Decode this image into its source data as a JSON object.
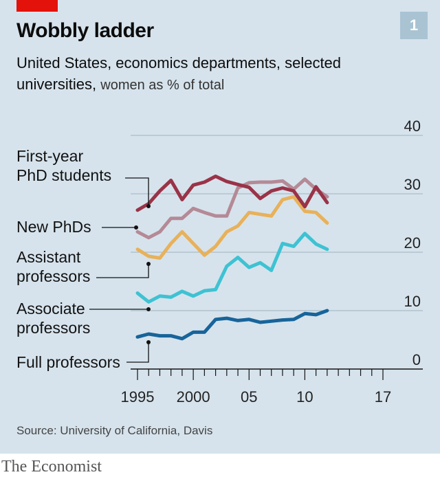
{
  "header": {
    "title": "Wobbly ladder",
    "badge": "1",
    "subtitle_bold": "United States, economics departments, selected universities,",
    "subtitle_light": "women as % of total"
  },
  "footer": {
    "source": "Source: University of California, Davis",
    "brand": "The Economist"
  },
  "colors": {
    "first_year": "#9a3348",
    "new_phds": "#b48a96",
    "assistant": "#e8b15a",
    "associate": "#3ec2d3",
    "full": "#17649a",
    "accent_red": "#e3120b",
    "background": "#d6e3ec"
  },
  "chart_data": {
    "type": "line",
    "x": [
      1995,
      1996,
      1997,
      1998,
      1999,
      2000,
      2001,
      2002,
      2003,
      2004,
      2005,
      2006,
      2007,
      2008,
      2009,
      2010,
      2011,
      2012,
      2013,
      2014,
      2015,
      2016,
      2017
    ],
    "ylim": [
      0,
      40
    ],
    "y_ticks": [
      "0",
      "10",
      "20",
      "30",
      "40"
    ],
    "x_ticks": [
      {
        "value": 1995,
        "label": "1995"
      },
      {
        "value": 2000,
        "label": "2000"
      },
      {
        "value": 2005,
        "label": "05"
      },
      {
        "value": 2010,
        "label": "10"
      },
      {
        "value": 2017,
        "label": "17"
      }
    ],
    "series": [
      {
        "key": "first_year",
        "label_lines": [
          "First-year",
          "PhD students"
        ],
        "values": [
          null,
          null,
          null,
          null,
          null,
          27.2,
          28.3,
          30.5,
          32.3,
          29.0,
          31.5,
          32.0,
          33.0,
          32.1,
          31.6,
          31.1,
          29.2,
          30.5,
          31.0,
          30.5,
          27.8,
          31.2,
          28.5
        ]
      },
      {
        "key": "new_phds",
        "label_lines": [
          "New PhDs"
        ],
        "values": [
          null,
          null,
          null,
          null,
          null,
          23.5,
          22.5,
          23.5,
          25.8,
          25.8,
          27.5,
          26.8,
          26.2,
          26.2,
          31.0,
          31.9,
          32.0,
          32.0,
          32.2,
          30.8,
          32.5,
          30.8,
          29.5
        ]
      },
      {
        "key": "assistant",
        "label_lines": [
          "Assistant",
          "professors"
        ],
        "values": [
          null,
          null,
          null,
          null,
          null,
          20.5,
          19.3,
          19.0,
          21.5,
          23.5,
          21.5,
          19.5,
          21.0,
          23.5,
          24.5,
          26.8,
          26.5,
          26.2,
          29.0,
          29.5,
          27.0,
          26.8,
          25.0
        ]
      },
      {
        "key": "associate",
        "label_lines": [
          "Associate",
          "professors"
        ],
        "values": [
          null,
          null,
          null,
          null,
          null,
          13.0,
          11.5,
          12.5,
          12.3,
          13.3,
          12.5,
          13.4,
          13.6,
          17.6,
          19.1,
          17.4,
          18.2,
          16.9,
          21.5,
          21.0,
          23.2,
          21.4,
          20.5
        ]
      },
      {
        "key": "full",
        "label_lines": [
          "Full professors"
        ],
        "values": [
          null,
          null,
          null,
          null,
          null,
          5.5,
          6.0,
          5.7,
          5.7,
          5.2,
          6.3,
          6.3,
          8.5,
          8.7,
          8.3,
          8.5,
          8.0,
          8.2,
          8.4,
          8.5,
          9.5,
          9.3,
          10.0
        ]
      }
    ]
  }
}
